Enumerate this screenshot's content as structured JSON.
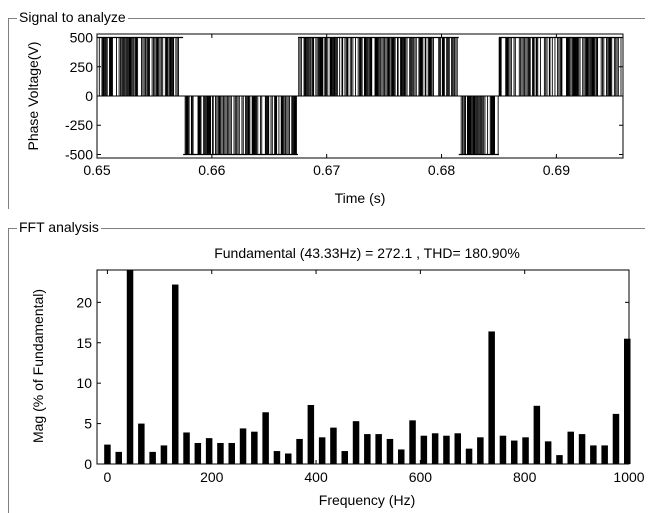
{
  "panels": {
    "signal_title": "Signal to analyze",
    "fft_title": "FFT analysis"
  },
  "chart_data": [
    {
      "type": "line",
      "title": "",
      "xlabel": "Time (s)",
      "ylabel": "Phase Voltage(V)",
      "xlim": [
        0.65,
        0.6958
      ],
      "ylim": [
        -530,
        530
      ],
      "xticks": [
        0.65,
        0.66,
        0.67,
        0.68,
        0.69
      ],
      "xtick_labels": [
        "0.65",
        "0.66",
        "0.67",
        "0.68",
        "0.69"
      ],
      "yticks": [
        500,
        250,
        0,
        -250,
        -500
      ],
      "ytick_labels": [
        "500",
        "250",
        "0",
        "-250",
        "-500"
      ],
      "series": [
        {
          "description": "PWM phase voltage switching between +500 and -500 V",
          "levels": [
            500,
            -500
          ],
          "positive_half_intervals": [
            [
              0.65,
              0.6575
            ],
            [
              0.6675,
              0.6815
            ],
            [
              0.685,
              0.6958
            ]
          ],
          "negative_half_intervals": [
            [
              0.6575,
              0.6675
            ],
            [
              0.6815,
              0.685
            ]
          ]
        }
      ],
      "grid": false
    },
    {
      "type": "bar",
      "title": "Fundamental (43.33Hz) = 272.1 , THD= 180.90%",
      "xlabel": "Frequency (Hz)",
      "ylabel": "Mag (% of Fundamental)",
      "xlim": [
        -20,
        1000
      ],
      "ylim": [
        0,
        24
      ],
      "xticks": [
        0,
        200,
        400,
        600,
        800,
        1000
      ],
      "xtick_labels": [
        "0",
        "200",
        "400",
        "600",
        "800",
        "1000"
      ],
      "yticks": [
        0,
        5,
        10,
        15,
        20
      ],
      "ytick_labels": [
        "0",
        "5",
        "10",
        "15",
        "20"
      ],
      "x": [
        0,
        21.67,
        43.33,
        65,
        86.67,
        108.33,
        130,
        151.67,
        173.33,
        195,
        216.67,
        238.33,
        260,
        281.67,
        303.33,
        325,
        346.67,
        368.33,
        390,
        411.67,
        433.33,
        455,
        476.67,
        498.33,
        520,
        541.67,
        563.33,
        585,
        606.67,
        628.33,
        650,
        671.67,
        693.33,
        715,
        736.67,
        758.33,
        780,
        801.67,
        823.33,
        845,
        866.67,
        888.33,
        910,
        931.67,
        953.33,
        975,
        996.67
      ],
      "values": [
        2.4,
        1.5,
        24,
        5.0,
        1.5,
        2.3,
        22.2,
        3.9,
        2.6,
        3.2,
        2.6,
        2.6,
        4.4,
        4.0,
        6.4,
        1.6,
        1.3,
        3.1,
        7.3,
        3.3,
        4.5,
        1.6,
        5.3,
        3.7,
        3.7,
        3.1,
        1.8,
        5.4,
        3.5,
        3.8,
        3.5,
        3.8,
        1.9,
        3.3,
        16.4,
        3.5,
        2.9,
        3.3,
        7.2,
        2.8,
        1.1,
        4.0,
        3.7,
        2.3,
        2.3,
        6.2,
        15.5
      ],
      "grid": false,
      "legend": "none"
    }
  ]
}
